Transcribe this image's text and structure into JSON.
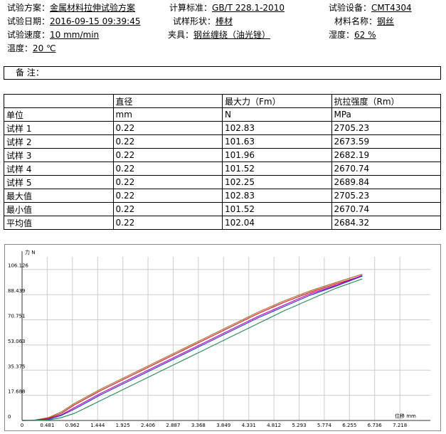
{
  "header": {
    "fields": [
      {
        "label": "试验方案：",
        "value": "金属材料拉伸试验方案"
      },
      {
        "label": "计算标准：",
        "value": "GB/T 228.1-2010"
      },
      {
        "label": "试验设备：",
        "value": "CMT4304"
      },
      {
        "label": "试验日期：",
        "value": "2016-09-15 09:39:45"
      },
      {
        "label": "试样形状：",
        "value": "棒材"
      },
      {
        "label": "材料名称：",
        "value": "钢丝"
      },
      {
        "label": "试验速度：",
        "value": "10 mm/min"
      },
      {
        "label": "夹具：",
        "value": "钢丝缠绕（油光锉）"
      },
      {
        "label": "湿度：",
        "value": "62 %"
      },
      {
        "label": "温度：",
        "value": "20 ℃"
      }
    ]
  },
  "remark": {
    "label": "备 注："
  },
  "table": {
    "header": [
      "直径",
      "最大力（Fm）",
      "抗拉强度（Rm）"
    ],
    "units": [
      "单位",
      "mm",
      "N",
      "MPa"
    ],
    "rows": [
      [
        "试样 1",
        0.22,
        102.83,
        2705.23
      ],
      [
        "试样 2",
        0.22,
        101.63,
        2673.59
      ],
      [
        "试样 3",
        0.22,
        101.96,
        2682.19
      ],
      [
        "试样 4",
        0.22,
        101.52,
        2670.74
      ],
      [
        "试样 5",
        0.22,
        102.25,
        2689.84
      ],
      [
        "最大值",
        0.22,
        102.83,
        2705.23
      ],
      [
        "最小值",
        0.22,
        101.52,
        2670.74
      ],
      [
        "平均值",
        0.22,
        102.04,
        2684.32
      ]
    ]
  },
  "chart_data": {
    "type": "line",
    "ylabel": "力 N",
    "xlabel": "位移 mm",
    "xlim": [
      0,
      7.8
    ],
    "ylim": [
      0,
      115
    ],
    "xticks": [
      0,
      0.481,
      0.962,
      1.444,
      1.925,
      2.406,
      2.887,
      3.368,
      3.849,
      4.331,
      4.812,
      5.293,
      5.774,
      6.255,
      6.736,
      7.218
    ],
    "yticks": [
      0,
      17.688,
      35.375,
      53.063,
      70.751,
      88.439,
      106.126
    ],
    "grid": true,
    "x": [
      0,
      0.25,
      0.5,
      0.75,
      1,
      1.5,
      2,
      2.5,
      3,
      3.5,
      4,
      4.5,
      5,
      5.5,
      6,
      6.5
    ],
    "series": [
      {
        "color": "#b06a2a",
        "values": [
          0,
          0.3,
          2,
          6,
          12,
          22,
          31,
          40,
          49,
          58,
          67,
          76,
          84,
          91,
          97,
          102.8
        ]
      },
      {
        "color": "#d02020",
        "values": [
          0,
          0.2,
          1.5,
          5,
          11,
          21,
          30,
          39,
          48,
          57,
          66,
          75,
          83,
          90,
          96,
          101.6
        ]
      },
      {
        "color": "#c000c0",
        "values": [
          0,
          0.2,
          1,
          4,
          9,
          19,
          28,
          37,
          46,
          55,
          64,
          73,
          81,
          89,
          95,
          102
        ]
      },
      {
        "color": "#2040c0",
        "values": [
          0,
          0.1,
          0.8,
          3.5,
          8,
          18,
          27,
          36,
          45,
          54,
          63,
          72,
          80,
          88,
          94.5,
          101.5
        ]
      },
      {
        "color": "#2e8b57",
        "values": [
          0,
          0,
          0.3,
          2,
          5,
          14,
          23,
          32,
          41,
          50,
          59,
          68,
          77,
          85,
          93,
          99.5
        ]
      }
    ]
  }
}
